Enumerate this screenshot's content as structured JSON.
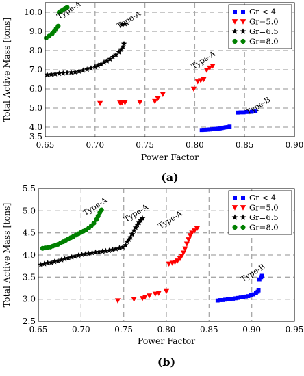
{
  "chart_data": [
    {
      "type": "scatter",
      "panel_label": "(a)",
      "xlabel": "Power Factor",
      "ylabel": "Total Active Mass [tons]",
      "xlim": [
        0.65,
        0.9
      ],
      "ylim": [
        3.5,
        10.5
      ],
      "xticks": [
        "0.65",
        "0.70",
        "0.75",
        "0.80",
        "0.85",
        "0.90"
      ],
      "yticks": [
        "3.5",
        "4.0",
        "5.0",
        "6.0",
        "7.0",
        "8.0",
        "9.0",
        "10.0"
      ],
      "grid": true,
      "legend_position": "top-right",
      "series": [
        {
          "name": "Gr < 4",
          "color": "#0000ff",
          "marker": "square",
          "points": [
            [
              0.807,
              3.85
            ],
            [
              0.809,
              3.86
            ],
            [
              0.811,
              3.86
            ],
            [
              0.813,
              3.87
            ],
            [
              0.815,
              3.88
            ],
            [
              0.817,
              3.89
            ],
            [
              0.819,
              3.9
            ],
            [
              0.821,
              3.91
            ],
            [
              0.823,
              3.92
            ],
            [
              0.825,
              3.93
            ],
            [
              0.827,
              3.95
            ],
            [
              0.829,
              3.97
            ],
            [
              0.831,
              3.99
            ],
            [
              0.833,
              4.0
            ],
            [
              0.835,
              4.03
            ],
            [
              0.843,
              4.76
            ],
            [
              0.846,
              4.77
            ],
            [
              0.849,
              4.77
            ],
            [
              0.852,
              4.79
            ],
            [
              0.857,
              4.8
            ],
            [
              0.861,
              4.82
            ]
          ]
        },
        {
          "name": "Gr=5.0",
          "color": "#ff0000",
          "marker": "triangle-down",
          "points": [
            [
              0.705,
              5.25
            ],
            [
              0.725,
              5.27
            ],
            [
              0.727,
              5.28
            ],
            [
              0.73,
              5.29
            ],
            [
              0.745,
              5.3
            ],
            [
              0.76,
              5.35
            ],
            [
              0.763,
              5.5
            ],
            [
              0.768,
              5.72
            ],
            [
              0.799,
              6.0
            ],
            [
              0.803,
              6.38
            ],
            [
              0.806,
              6.44
            ],
            [
              0.809,
              6.5
            ],
            [
              0.812,
              6.98
            ],
            [
              0.815,
              7.1
            ],
            [
              0.818,
              7.2
            ]
          ]
        },
        {
          "name": "Gr=6.5",
          "color": "#000000",
          "marker": "star",
          "points": [
            [
              0.652,
              6.74
            ],
            [
              0.656,
              6.76
            ],
            [
              0.66,
              6.78
            ],
            [
              0.664,
              6.8
            ],
            [
              0.668,
              6.82
            ],
            [
              0.672,
              6.84
            ],
            [
              0.676,
              6.86
            ],
            [
              0.68,
              6.88
            ],
            [
              0.684,
              6.92
            ],
            [
              0.688,
              6.97
            ],
            [
              0.692,
              7.02
            ],
            [
              0.696,
              7.08
            ],
            [
              0.7,
              7.15
            ],
            [
              0.703,
              7.22
            ],
            [
              0.706,
              7.3
            ],
            [
              0.709,
              7.38
            ],
            [
              0.712,
              7.46
            ],
            [
              0.715,
              7.56
            ],
            [
              0.718,
              7.66
            ],
            [
              0.721,
              7.78
            ],
            [
              0.724,
              7.92
            ],
            [
              0.726,
              8.06
            ],
            [
              0.728,
              8.2
            ],
            [
              0.729,
              8.35
            ],
            [
              0.727,
              9.36
            ],
            [
              0.73,
              9.4
            ]
          ]
        },
        {
          "name": "Gr=8.0",
          "color": "#008000",
          "marker": "circle",
          "points": [
            [
              0.651,
              8.66
            ],
            [
              0.654,
              8.76
            ],
            [
              0.657,
              8.88
            ],
            [
              0.659,
              9.0
            ],
            [
              0.661,
              9.15
            ],
            [
              0.663,
              9.28
            ],
            [
              0.664,
              10.0
            ],
            [
              0.666,
              10.07
            ],
            [
              0.668,
              10.14
            ],
            [
              0.67,
              10.2
            ],
            [
              0.672,
              10.26
            ]
          ]
        }
      ],
      "annotations": [
        {
          "text": "Type-A",
          "x": 0.675,
          "y": 10.0
        },
        {
          "text": "Type-A",
          "x": 0.735,
          "y": 9.5
        },
        {
          "text": "Type-A",
          "x": 0.81,
          "y": 7.4
        },
        {
          "text": "Type-B",
          "x": 0.865,
          "y": 5.0
        }
      ]
    },
    {
      "type": "scatter",
      "panel_label": "(b)",
      "xlabel": "Power Factor",
      "ylabel": "Total Active Mass [tons]",
      "xlim": [
        0.65,
        0.95
      ],
      "ylim": [
        2.5,
        5.5
      ],
      "xticks": [
        "0.65",
        "0.70",
        "0.75",
        "0.80",
        "0.85",
        "0.90",
        "0.95"
      ],
      "yticks": [
        "2.5",
        "3.0",
        "3.5",
        "4.0",
        "4.5",
        "5.0",
        "5.5"
      ],
      "grid": true,
      "legend_position": "top-right",
      "series": [
        {
          "name": "Gr < 4",
          "color": "#0000ff",
          "marker": "square",
          "points": [
            [
              0.86,
              2.97
            ],
            [
              0.863,
              2.98
            ],
            [
              0.866,
              2.98
            ],
            [
              0.869,
              2.99
            ],
            [
              0.872,
              3.0
            ],
            [
              0.875,
              3.0
            ],
            [
              0.878,
              3.01
            ],
            [
              0.881,
              3.02
            ],
            [
              0.884,
              3.03
            ],
            [
              0.887,
              3.04
            ],
            [
              0.89,
              3.05
            ],
            [
              0.893,
              3.06
            ],
            [
              0.896,
              3.07
            ],
            [
              0.899,
              3.09
            ],
            [
              0.902,
              3.11
            ],
            [
              0.905,
              3.14
            ],
            [
              0.907,
              3.17
            ],
            [
              0.908,
              3.2
            ],
            [
              0.909,
              3.45
            ],
            [
              0.911,
              3.5
            ],
            [
              0.912,
              3.53
            ]
          ]
        },
        {
          "name": "Gr=5.0",
          "color": "#ff0000",
          "marker": "triangle-down",
          "points": [
            [
              0.743,
              2.97
            ],
            [
              0.762,
              3.0
            ],
            [
              0.772,
              3.02
            ],
            [
              0.775,
              3.05
            ],
            [
              0.78,
              3.08
            ],
            [
              0.787,
              3.12
            ],
            [
              0.791,
              3.14
            ],
            [
              0.8,
              3.18
            ],
            [
              0.803,
              3.8
            ],
            [
              0.807,
              3.82
            ],
            [
              0.81,
              3.84
            ],
            [
              0.813,
              3.87
            ],
            [
              0.816,
              3.92
            ],
            [
              0.818,
              3.98
            ],
            [
              0.82,
              4.05
            ],
            [
              0.822,
              4.14
            ],
            [
              0.824,
              4.25
            ],
            [
              0.826,
              4.35
            ],
            [
              0.828,
              4.44
            ],
            [
              0.83,
              4.5
            ],
            [
              0.833,
              4.55
            ],
            [
              0.836,
              4.6
            ]
          ]
        },
        {
          "name": "Gr=6.5",
          "color": "#000000",
          "marker": "star",
          "points": [
            [
              0.653,
              3.78
            ],
            [
              0.657,
              3.8
            ],
            [
              0.661,
              3.82
            ],
            [
              0.665,
              3.83
            ],
            [
              0.669,
              3.85
            ],
            [
              0.673,
              3.87
            ],
            [
              0.677,
              3.89
            ],
            [
              0.681,
              3.91
            ],
            [
              0.685,
              3.93
            ],
            [
              0.689,
              3.95
            ],
            [
              0.693,
              3.97
            ],
            [
              0.697,
              3.99
            ],
            [
              0.701,
              4.01
            ],
            [
              0.705,
              4.02
            ],
            [
              0.709,
              4.03
            ],
            [
              0.713,
              4.05
            ],
            [
              0.717,
              4.06
            ],
            [
              0.721,
              4.07
            ],
            [
              0.725,
              4.08
            ],
            [
              0.729,
              4.09
            ],
            [
              0.733,
              4.1
            ],
            [
              0.737,
              4.12
            ],
            [
              0.741,
              4.14
            ],
            [
              0.745,
              4.16
            ],
            [
              0.749,
              4.18
            ],
            [
              0.752,
              4.22
            ],
            [
              0.754,
              4.3
            ],
            [
              0.756,
              4.35
            ],
            [
              0.758,
              4.4
            ],
            [
              0.76,
              4.47
            ],
            [
              0.762,
              4.55
            ],
            [
              0.764,
              4.62
            ],
            [
              0.766,
              4.68
            ],
            [
              0.768,
              4.73
            ],
            [
              0.77,
              4.78
            ],
            [
              0.772,
              4.83
            ]
          ]
        },
        {
          "name": "Gr=8.0",
          "color": "#008000",
          "marker": "circle",
          "points": [
            [
              0.655,
              4.15
            ],
            [
              0.658,
              4.16
            ],
            [
              0.661,
              4.17
            ],
            [
              0.664,
              4.18
            ],
            [
              0.667,
              4.2
            ],
            [
              0.67,
              4.22
            ],
            [
              0.673,
              4.24
            ],
            [
              0.676,
              4.27
            ],
            [
              0.679,
              4.3
            ],
            [
              0.682,
              4.33
            ],
            [
              0.685,
              4.36
            ],
            [
              0.688,
              4.39
            ],
            [
              0.691,
              4.42
            ],
            [
              0.694,
              4.45
            ],
            [
              0.697,
              4.48
            ],
            [
              0.7,
              4.51
            ],
            [
              0.703,
              4.54
            ],
            [
              0.706,
              4.57
            ],
            [
              0.709,
              4.61
            ],
            [
              0.712,
              4.66
            ],
            [
              0.715,
              4.72
            ],
            [
              0.718,
              4.8
            ],
            [
              0.72,
              4.88
            ],
            [
              0.722,
              4.96
            ],
            [
              0.724,
              5.02
            ]
          ]
        }
      ],
      "annotations": [
        {
          "text": "Type-A",
          "x": 0.718,
          "y": 5.05
        },
        {
          "text": "Type-A",
          "x": 0.766,
          "y": 4.9
        },
        {
          "text": "Type-A",
          "x": 0.806,
          "y": 4.75
        },
        {
          "text": "Type-B",
          "x": 0.903,
          "y": 3.55
        }
      ]
    }
  ],
  "legend_colors": {
    "blue": "#0000ff",
    "red": "#ff0000",
    "black": "#000000",
    "green": "#008000"
  }
}
